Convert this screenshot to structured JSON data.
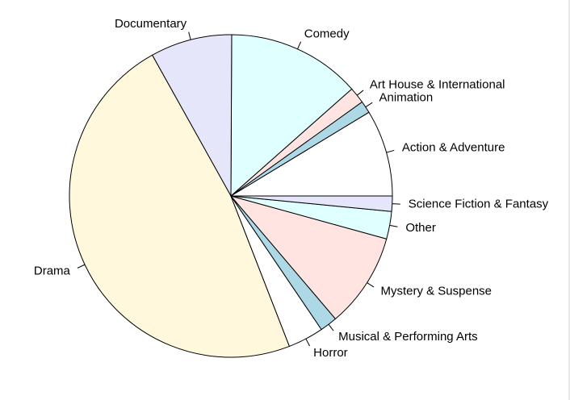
{
  "chart_data": {
    "type": "pie",
    "title": "",
    "direction": "counterclockwise",
    "start": "3 o'clock",
    "slices": [
      {
        "label": "Action & Adventure",
        "value": 8.5,
        "color": "#ffffff"
      },
      {
        "label": "Animation",
        "value": 1.2,
        "color": "#add8e6"
      },
      {
        "label": "Art House & International",
        "value": 1.6,
        "color": "#ffe4e1"
      },
      {
        "label": "Comedy",
        "value": 13.1,
        "color": "#e0ffff"
      },
      {
        "label": "Documentary",
        "value": 8.0,
        "color": "#e6e6fa"
      },
      {
        "label": "Drama",
        "value": 46.8,
        "color": "#fff8dc"
      },
      {
        "label": "Horror",
        "value": 3.5,
        "color": "#ffffff"
      },
      {
        "label": "Musical & Performing Arts",
        "value": 1.7,
        "color": "#add8e6"
      },
      {
        "label": "Mystery & Suspense",
        "value": 9.3,
        "color": "#ffe4e1"
      },
      {
        "label": "Other",
        "value": 2.7,
        "color": "#e0ffff"
      },
      {
        "label": "Science Fiction & Fantasy",
        "value": 1.5,
        "color": "#e6e6fa"
      }
    ]
  }
}
